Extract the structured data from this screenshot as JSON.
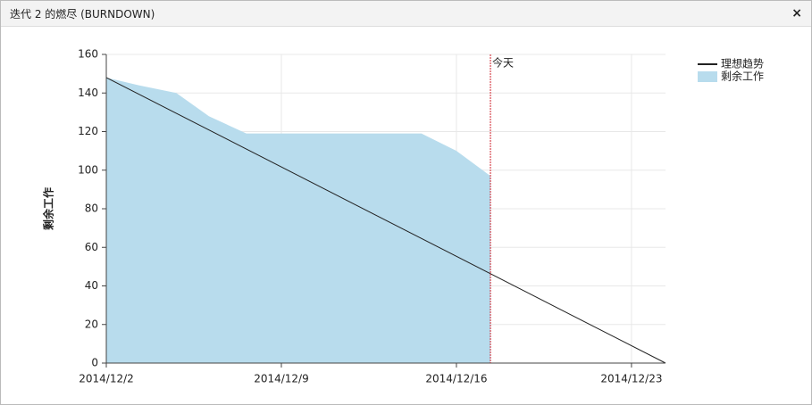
{
  "dialog": {
    "title": "迭代 2 的燃尽 (BURNDOWN)",
    "close": "×"
  },
  "chart_data": {
    "type": "burndown",
    "y_label": "剩余工作",
    "xlim": [
      0,
      22.36
    ],
    "ylim": [
      0,
      160
    ],
    "xticks": [
      {
        "value": 0,
        "label": "2014/12/2"
      },
      {
        "value": 7,
        "label": "2014/12/9"
      },
      {
        "value": 14,
        "label": "2014/12/16"
      },
      {
        "value": 21,
        "label": "2014/12/23"
      }
    ],
    "yticks": [
      0,
      20,
      40,
      60,
      80,
      100,
      120,
      140,
      160
    ],
    "grid": true,
    "today": {
      "x": 15.36,
      "label": "今天",
      "color": "#d0202a"
    },
    "series": [
      {
        "name": "理想趋势",
        "kind": "line",
        "color": "#222222",
        "x": [
          0,
          22.36
        ],
        "values": [
          148,
          0
        ]
      },
      {
        "name": "剩余工作",
        "kind": "area",
        "color": "#b8dced",
        "x": [
          0,
          1.3,
          2.8,
          4.1,
          5.6,
          12.6,
          14,
          15.36
        ],
        "values": [
          148,
          144,
          140,
          128,
          119,
          119,
          110,
          97
        ]
      }
    ],
    "legend": "top-right"
  }
}
